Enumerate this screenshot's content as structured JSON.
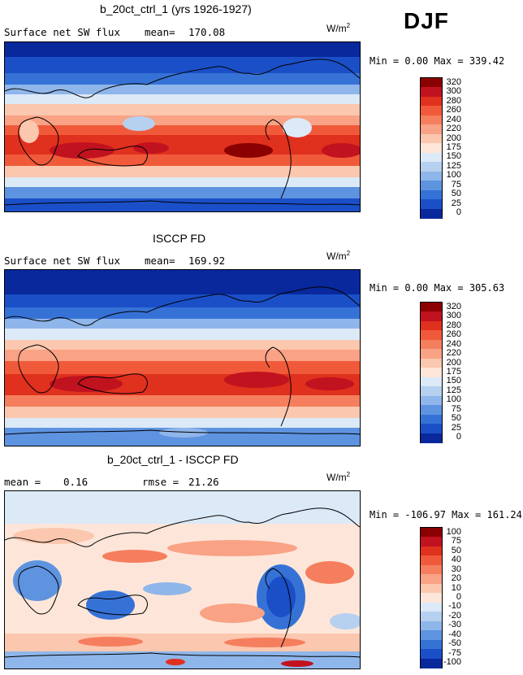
{
  "season": "DJF",
  "panels": [
    {
      "title": "b_20ct_ctrl_1 (yrs 1926-1927)",
      "left_label": "Surface net SW flux",
      "stat_label": "mean=",
      "stat_value": "170.08",
      "units": "W/m",
      "units_sup": "2",
      "minmax": "Min =    0.00 Max = 339.42",
      "levels": [
        "320",
        "300",
        "280",
        "260",
        "240",
        "220",
        "200",
        "175",
        "150",
        "125",
        "100",
        "75",
        "50",
        "25",
        "0"
      ],
      "colors": [
        "#8b0000",
        "#c1121f",
        "#e0301e",
        "#f05a3a",
        "#f57e5e",
        "#f9a285",
        "#fbc7ae",
        "#fde6d9",
        "#dce9f7",
        "#b6d0f0",
        "#8fb6ea",
        "#5e93e0",
        "#3672d6",
        "#1a4fc7",
        "#08289c"
      ]
    },
    {
      "title": "ISCCP FD",
      "left_label": "Surface net SW flux",
      "stat_label": "mean=",
      "stat_value": "169.92",
      "units": "W/m",
      "units_sup": "2",
      "minmax": "Min =    0.00 Max = 305.63",
      "levels": [
        "320",
        "300",
        "280",
        "260",
        "240",
        "220",
        "200",
        "175",
        "150",
        "125",
        "100",
        "75",
        "50",
        "25",
        "0"
      ],
      "colors": [
        "#8b0000",
        "#c1121f",
        "#e0301e",
        "#f05a3a",
        "#f57e5e",
        "#f9a285",
        "#fbc7ae",
        "#fde6d9",
        "#dce9f7",
        "#b6d0f0",
        "#8fb6ea",
        "#5e93e0",
        "#3672d6",
        "#1a4fc7",
        "#08289c"
      ]
    },
    {
      "title": "b_20ct_ctrl_1 - ISCCP FD",
      "left_label": "mean =",
      "left_value": "0.16",
      "stat_label": "rmse =",
      "stat_value": "21.26",
      "units": "W/m",
      "units_sup": "2",
      "minmax": "Min = -106.97 Max = 161.24",
      "levels": [
        "100",
        "75",
        "50",
        "40",
        "30",
        "20",
        "10",
        "0",
        "-10",
        "-20",
        "-30",
        "-40",
        "-50",
        "-75",
        "-100"
      ],
      "colors": [
        "#8b0000",
        "#c1121f",
        "#e0301e",
        "#f05a3a",
        "#f57e5e",
        "#f9a285",
        "#fbc7ae",
        "#fde6d9",
        "#dce9f7",
        "#b6d0f0",
        "#8fb6ea",
        "#5e93e0",
        "#3672d6",
        "#1a4fc7",
        "#08289c"
      ]
    }
  ]
}
